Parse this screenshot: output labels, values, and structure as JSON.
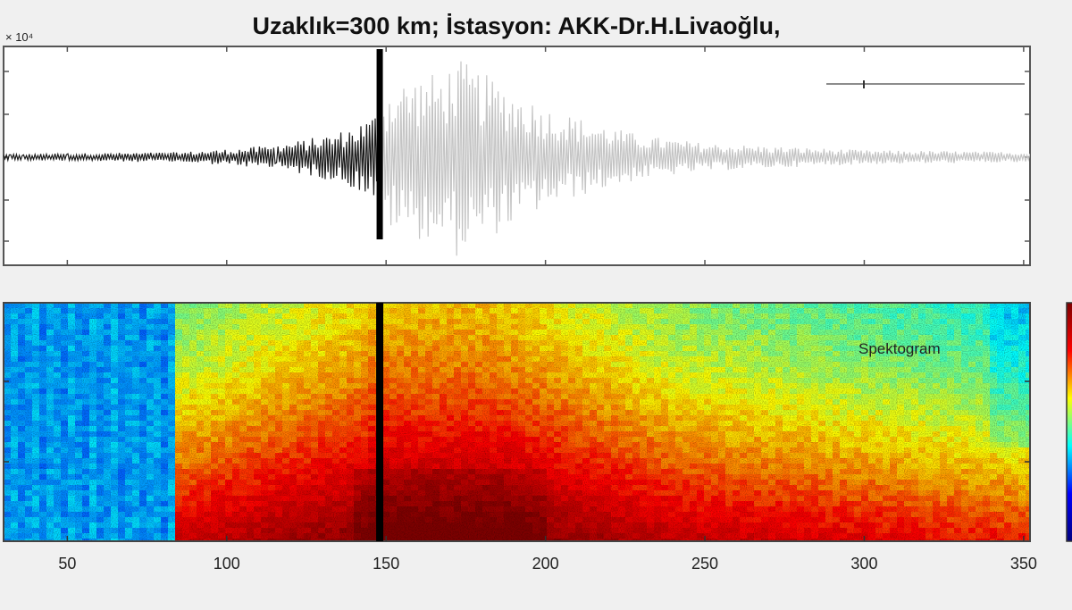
{
  "chart_data": [
    {
      "type": "line",
      "panel": "seismogram",
      "title": "Uzaklık=300 km; İstasyon: AKK-Dr.H.Livaoğlu,",
      "y_exponent_label": "× 10⁴",
      "xlim": [
        30,
        352
      ],
      "x_ticks": [
        50,
        100,
        150,
        200,
        250,
        300,
        350
      ],
      "grid": false,
      "marker_x": 148,
      "series": [
        {
          "segment": "before_marker",
          "color": "#1a1a1a"
        },
        {
          "segment": "after_marker",
          "color": "#c4c4c4"
        }
      ],
      "envelope": {
        "x": [
          30,
          85,
          100,
          115,
          125,
          135,
          140,
          146,
          148,
          152,
          160,
          168,
          172,
          180,
          190,
          200,
          215,
          230,
          250,
          270,
          300,
          330,
          352
        ],
        "amplitude": [
          0.03,
          0.05,
          0.08,
          0.12,
          0.18,
          0.25,
          0.32,
          0.42,
          0.55,
          0.75,
          0.82,
          0.85,
          1.0,
          0.85,
          0.68,
          0.5,
          0.35,
          0.22,
          0.14,
          0.11,
          0.07,
          0.06,
          0.05
        ]
      }
    },
    {
      "type": "heatmap",
      "panel": "spectrogram",
      "label": "Spektogram",
      "xlim": [
        30,
        352
      ],
      "x_ticks": [
        50,
        100,
        150,
        200,
        250,
        300,
        350
      ],
      "tick_labels": [
        "50",
        "100",
        "150",
        "200",
        "250",
        "300",
        "350"
      ],
      "marker_x": 148,
      "colormap": [
        "#00007f",
        "#0000ff",
        "#00ffff",
        "#ffff00",
        "#ff0000",
        "#7f0000"
      ]
    }
  ]
}
